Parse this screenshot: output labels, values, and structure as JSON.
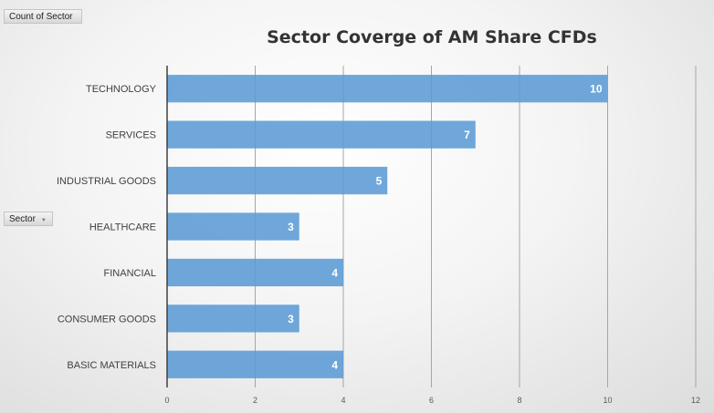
{
  "pivot": {
    "value_field": "Count of Sector",
    "row_field": "Sector"
  },
  "chart_data": {
    "type": "bar",
    "orientation": "horizontal",
    "title": "Sector Coverge of AM Share CFDs",
    "categories": [
      "TECHNOLOGY",
      "SERVICES",
      "INDUSTRIAL GOODS",
      "HEALTHCARE",
      "FINANCIAL",
      "CONSUMER GOODS",
      "BASIC MATERIALS"
    ],
    "values": [
      10,
      7,
      5,
      3,
      4,
      3,
      4
    ],
    "xlim": [
      0,
      12
    ],
    "xticks": [
      0,
      2,
      4,
      6,
      8,
      10,
      12
    ],
    "grid": true,
    "data_labels": true,
    "bar_color": "#5b9bd5"
  }
}
